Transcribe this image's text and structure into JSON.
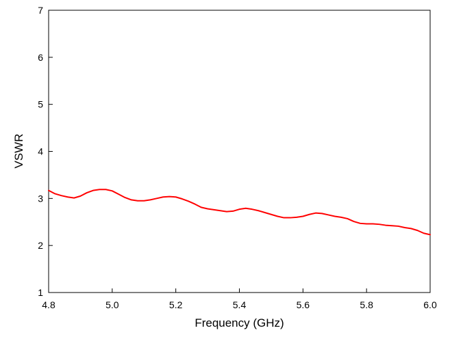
{
  "chart_data": {
    "type": "line",
    "title": "",
    "xlabel": "Frequency (GHz)",
    "ylabel": "VSWR",
    "xlim": [
      4.8,
      6.0
    ],
    "ylim": [
      1,
      7
    ],
    "x_ticks": [
      "4.8",
      "5.0",
      "5.2",
      "5.4",
      "5.6",
      "5.8",
      "6.0"
    ],
    "y_ticks": [
      "1",
      "2",
      "3",
      "4",
      "5",
      "6",
      "7"
    ],
    "grid": false,
    "legend": "none",
    "series": [
      {
        "color": "#ff0000",
        "x": [
          4.8,
          4.82,
          4.84,
          4.86,
          4.88,
          4.9,
          4.92,
          4.94,
          4.96,
          4.98,
          5.0,
          5.02,
          5.04,
          5.06,
          5.08,
          5.1,
          5.12,
          5.14,
          5.16,
          5.18,
          5.2,
          5.22,
          5.24,
          5.26,
          5.28,
          5.3,
          5.32,
          5.34,
          5.36,
          5.38,
          5.4,
          5.42,
          5.44,
          5.46,
          5.48,
          5.5,
          5.52,
          5.54,
          5.56,
          5.58,
          5.6,
          5.62,
          5.64,
          5.66,
          5.68,
          5.7,
          5.72,
          5.74,
          5.76,
          5.78,
          5.8,
          5.82,
          5.84,
          5.86,
          5.88,
          5.9,
          5.92,
          5.94,
          5.96,
          5.98,
          6.0
        ],
        "y": [
          3.17,
          3.1,
          3.06,
          3.03,
          3.01,
          3.05,
          3.12,
          3.17,
          3.19,
          3.19,
          3.16,
          3.09,
          3.02,
          2.97,
          2.95,
          2.95,
          2.97,
          3.0,
          3.03,
          3.04,
          3.03,
          2.99,
          2.94,
          2.88,
          2.81,
          2.78,
          2.76,
          2.74,
          2.72,
          2.73,
          2.77,
          2.79,
          2.77,
          2.74,
          2.7,
          2.66,
          2.62,
          2.59,
          2.59,
          2.6,
          2.62,
          2.66,
          2.69,
          2.68,
          2.65,
          2.62,
          2.6,
          2.57,
          2.51,
          2.47,
          2.46,
          2.46,
          2.45,
          2.43,
          2.42,
          2.41,
          2.38,
          2.36,
          2.32,
          2.26,
          2.23
        ]
      }
    ]
  }
}
